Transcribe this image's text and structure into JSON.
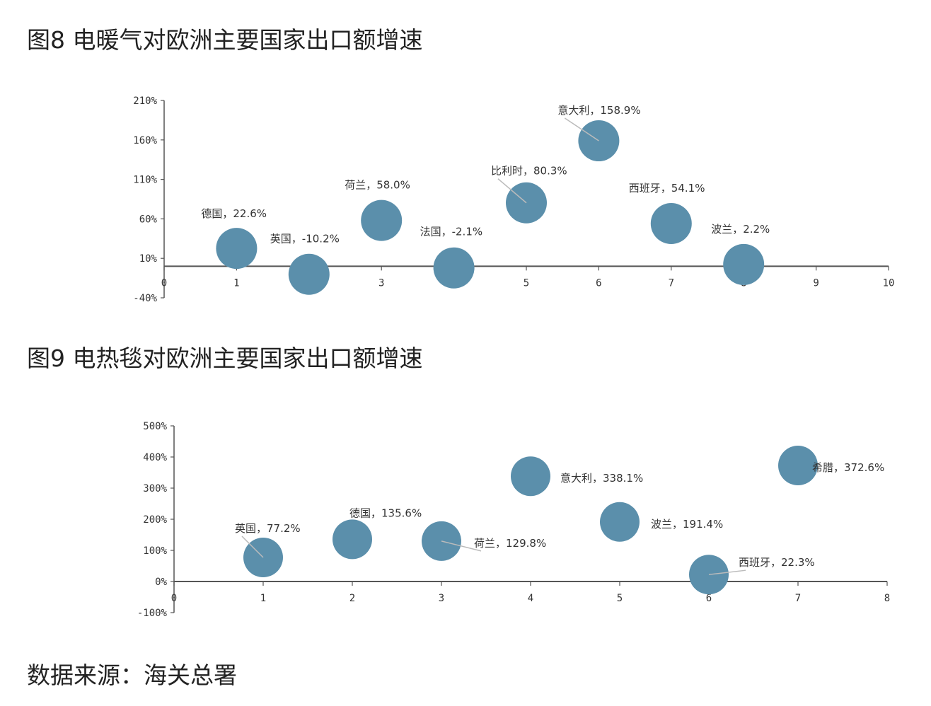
{
  "figures": {
    "fig8_title": "图8  电暖气对欧洲主要国家出口额增速",
    "fig9_title": "图9  电热毯对欧洲主要国家出口额增速"
  },
  "source": "数据来源：海关总署",
  "colors": {
    "bubble": "#5b8fab",
    "axis": "#555555",
    "leader": "#bbbbbb"
  },
  "chart_data": [
    {
      "type": "scatter",
      "title": "图8  电暖气对欧洲主要国家出口额增速",
      "xlim": [
        0,
        10
      ],
      "ylim": [
        -40,
        210
      ],
      "xticks": [
        0,
        1,
        2,
        3,
        4,
        5,
        6,
        7,
        8,
        9,
        10
      ],
      "yticks": [
        {
          "v": 210,
          "label": "210%"
        },
        {
          "v": 160,
          "label": "160%"
        },
        {
          "v": 110,
          "label": "110%"
        },
        {
          "v": 60,
          "label": "60%"
        },
        {
          "v": 10,
          "label": "10%"
        },
        {
          "v": -40,
          "label": "-40%"
        }
      ],
      "points": [
        {
          "x": 1,
          "y": 22.6,
          "label": "德国，22.6%"
        },
        {
          "x": 2,
          "y": -10.2,
          "label": "英国，-10.2%"
        },
        {
          "x": 3,
          "y": 58.0,
          "label": "荷兰，58.0%"
        },
        {
          "x": 4,
          "y": -2.1,
          "label": "法国，-2.1%"
        },
        {
          "x": 5,
          "y": 80.3,
          "label": "比利时，80.3%"
        },
        {
          "x": 6,
          "y": 158.9,
          "label": "意大利，158.9%"
        },
        {
          "x": 7,
          "y": 54.1,
          "label": "西班牙，54.1%"
        },
        {
          "x": 8,
          "y": 2.2,
          "label": "波兰，2.2%"
        }
      ]
    },
    {
      "type": "scatter",
      "title": "图9  电热毯对欧洲主要国家出口额增速",
      "xlim": [
        0,
        8
      ],
      "ylim": [
        -100,
        500
      ],
      "xticks": [
        0,
        1,
        2,
        3,
        4,
        5,
        6,
        7,
        8
      ],
      "yticks": [
        {
          "v": 500,
          "label": "500%"
        },
        {
          "v": 400,
          "label": "400%"
        },
        {
          "v": 300,
          "label": "300%"
        },
        {
          "v": 200,
          "label": "200%"
        },
        {
          "v": 100,
          "label": "100%"
        },
        {
          "v": 0,
          "label": "0%"
        },
        {
          "v": -100,
          "label": "-100%"
        }
      ],
      "points": [
        {
          "x": 1,
          "y": 77.2,
          "label": "英国，77.2%"
        },
        {
          "x": 2,
          "y": 135.6,
          "label": "德国，135.6%"
        },
        {
          "x": 3,
          "y": 129.8,
          "label": "荷兰，129.8%"
        },
        {
          "x": 4,
          "y": 338.1,
          "label": "意大利，338.1%"
        },
        {
          "x": 5,
          "y": 191.4,
          "label": "波兰，191.4%"
        },
        {
          "x": 6,
          "y": 22.3,
          "label": "西班牙，22.3%"
        },
        {
          "x": 7,
          "y": 372.6,
          "label": "希腊，372.6%"
        }
      ]
    }
  ]
}
